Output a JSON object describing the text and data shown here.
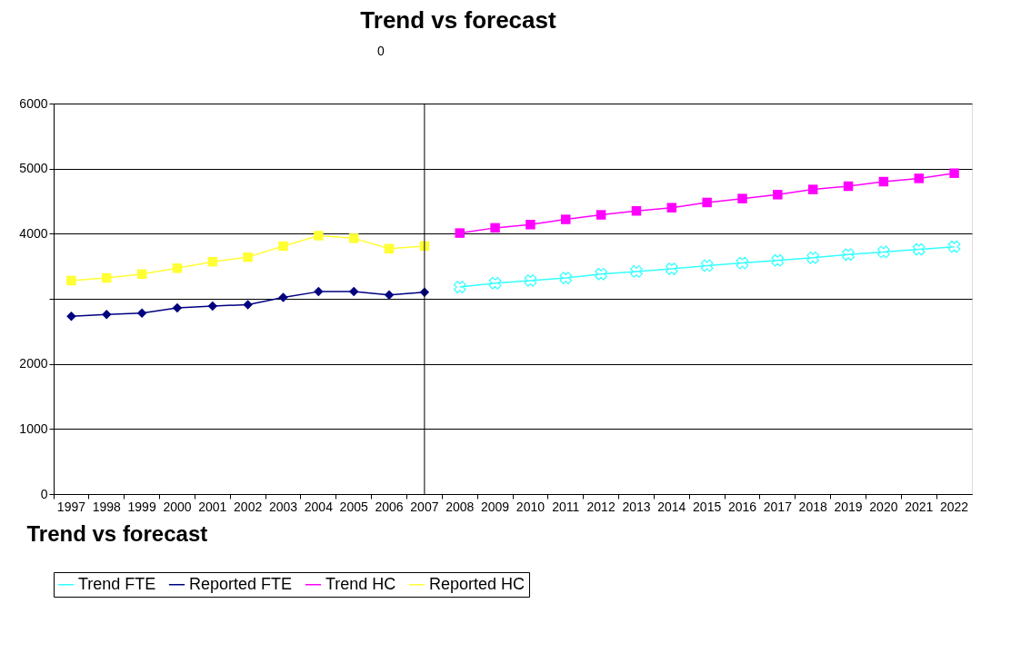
{
  "chart_data": {
    "type": "line",
    "title": "Trend vs forecast",
    "xlabel": "Trend vs forecast",
    "annotations": [
      "0"
    ],
    "categories": [
      "1997",
      "1998",
      "1999",
      "2000",
      "2001",
      "2002",
      "2003",
      "2004",
      "2005",
      "2006",
      "2007",
      "2008",
      "2009",
      "2010",
      "2011",
      "2012",
      "2013",
      "2014",
      "2015",
      "2016",
      "2017",
      "2018",
      "2019",
      "2020",
      "2021",
      "2022"
    ],
    "ylim": [
      0,
      6000
    ],
    "yticks": [
      0,
      1000,
      2000,
      {
        "value": 3000,
        "label": null
      },
      4000,
      5000,
      6000
    ],
    "grid": "y",
    "legend": "bottom",
    "ref_lines": [
      {
        "axis": "x",
        "value": "2007",
        "color": "#000000"
      }
    ],
    "series": [
      {
        "name": "Trend FTE",
        "color": "#33ffff",
        "marker": "cross",
        "values": [
          null,
          null,
          null,
          null,
          null,
          null,
          null,
          null,
          null,
          null,
          null,
          3180,
          3240,
          3280,
          3320,
          3380,
          3420,
          3460,
          3510,
          3550,
          3590,
          3630,
          3680,
          3720,
          3760,
          3800
        ]
      },
      {
        "name": "Reported FTE",
        "color": "#000080",
        "marker": "diamond",
        "values": [
          2730,
          2760,
          2780,
          2860,
          2890,
          2910,
          3020,
          3110,
          3110,
          3060,
          3100,
          null,
          null,
          null,
          null,
          null,
          null,
          null,
          null,
          null,
          null,
          null,
          null,
          null,
          null,
          null
        ]
      },
      {
        "name": "Trend HC",
        "color": "#ff00ff",
        "marker": "square",
        "values": [
          null,
          null,
          null,
          null,
          null,
          null,
          null,
          null,
          null,
          null,
          null,
          4010,
          4090,
          4140,
          4220,
          4290,
          4350,
          4400,
          4480,
          4540,
          4600,
          4680,
          4730,
          4800,
          4850,
          4930
        ]
      },
      {
        "name": "Reported HC",
        "color": "#ffff33",
        "marker": "square",
        "values": [
          3280,
          3320,
          3380,
          3470,
          3570,
          3640,
          3810,
          3970,
          3930,
          3770,
          3810,
          null,
          null,
          null,
          null,
          null,
          null,
          null,
          null,
          null,
          null,
          null,
          null,
          null,
          null,
          null
        ]
      }
    ]
  }
}
